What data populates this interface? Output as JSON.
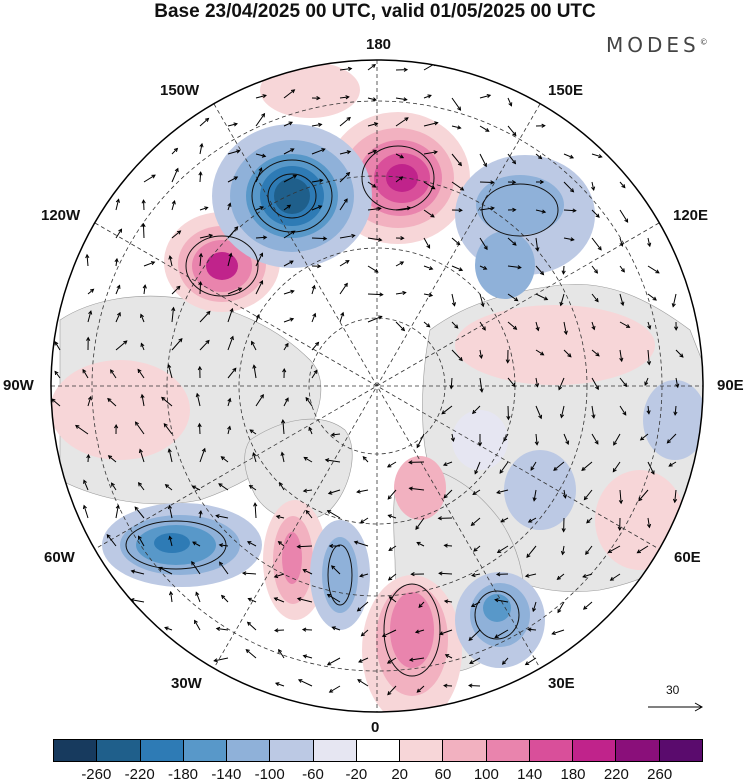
{
  "header": {
    "title": "Base 23/04/2025 00 UTC, valid 01/05/2025 00 UTC",
    "brand": "MODES",
    "brand_mark": "©"
  },
  "map": {
    "projection": "north polar stereographic",
    "lon_labels": {
      "top": "180",
      "bottom": "0",
      "left": "90W",
      "right": "90E",
      "upper_left_1": "150W",
      "upper_left_2": "120W",
      "upper_right_1": "150E",
      "upper_right_2": "120E",
      "lower_left_1": "60W",
      "lower_left_2": "30W",
      "lower_right_1": "60E",
      "lower_right_2": "30E"
    },
    "reference_vector": {
      "label": "30"
    },
    "colors": {
      "land": "#e8e8e8",
      "ocean": "#ffffff",
      "grid": "#333333",
      "contour": "#111111"
    }
  },
  "colorbar": {
    "levels": [
      "-260",
      "-220",
      "-180",
      "-140",
      "-100",
      "-60",
      "-20",
      "20",
      "60",
      "100",
      "140",
      "180",
      "220",
      "260"
    ],
    "colors": [
      "#173a5e",
      "#1f5f8b",
      "#2e7bb5",
      "#5898c9",
      "#8fb1d9",
      "#bcc9e4",
      "#e6e6f2",
      "#ffffff",
      "#f7d6d8",
      "#f2b1c0",
      "#e984ad",
      "#d94f9a",
      "#c0238b",
      "#8a0f7a",
      "#5a0b6d"
    ]
  }
}
